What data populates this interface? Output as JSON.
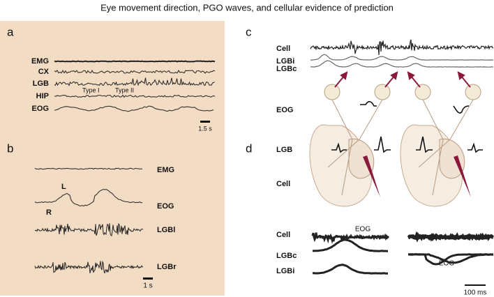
{
  "title": "Eye movement direction, PGO waves, and cellular evidence of prediction",
  "panels": {
    "a": {
      "label": "a",
      "traces": [
        "EMG",
        "CX",
        "LGB",
        "HIP",
        "EOG"
      ],
      "annotations": [
        "Type I",
        "Type II"
      ],
      "scale": "1.5 s"
    },
    "b": {
      "label": "b",
      "traces": [
        "EMG",
        "EOG",
        "LGBl",
        "LGBr"
      ],
      "annotations": [
        "L",
        "R"
      ],
      "scale": "1 s"
    },
    "c": {
      "label": "c",
      "traces": [
        "Cell",
        "LGBi",
        "LGBc"
      ]
    },
    "d": {
      "label": "d",
      "rows": [
        "EOG",
        "LGB",
        "Cell"
      ],
      "traces": [
        "Cell",
        "LGBc",
        "LGBi"
      ],
      "annotations": [
        "EOG",
        "EOG"
      ],
      "scale": "100 ms"
    }
  }
}
